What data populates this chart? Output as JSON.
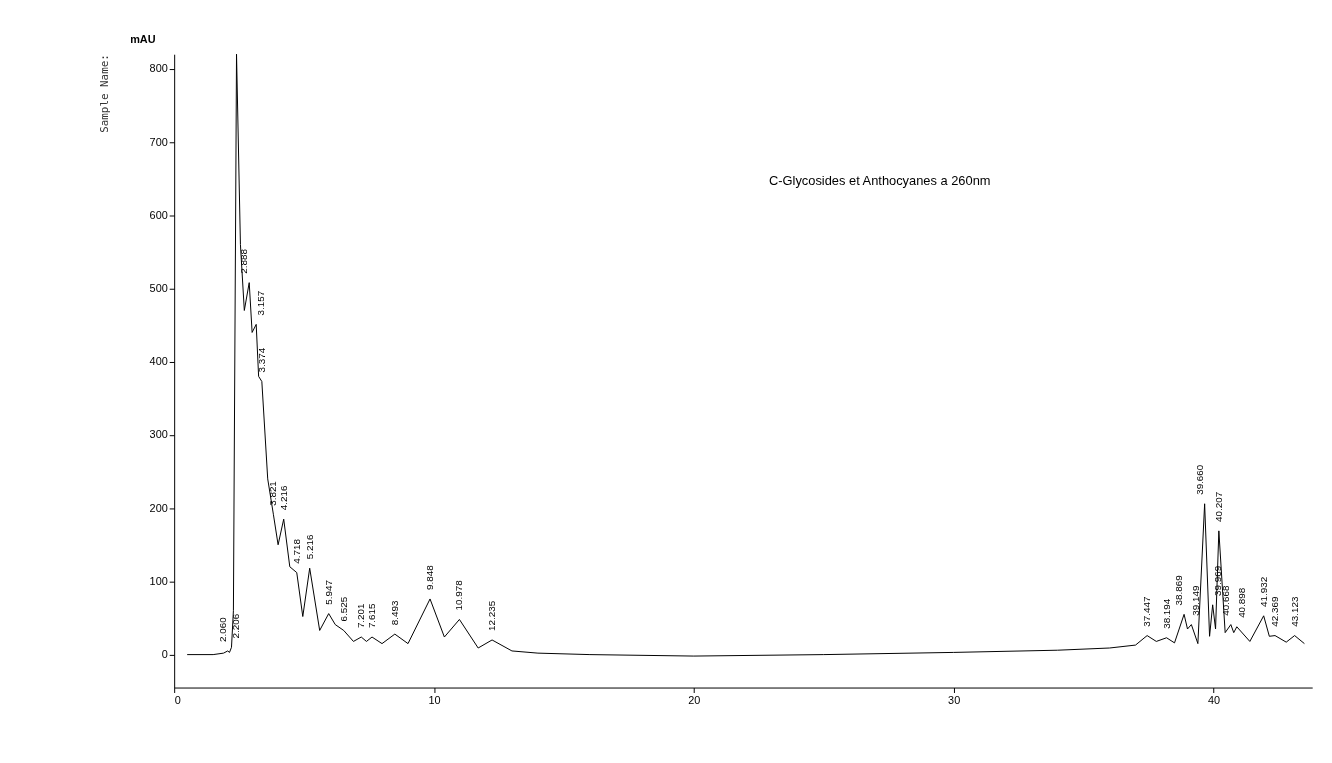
{
  "chart_data": {
    "type": "line",
    "title": "C-Glycosides et Anthocyanes a 260nm",
    "ylabel": "mAU",
    "x": [
      0.5,
      1.5,
      1.9,
      2.06,
      2.13,
      2.206,
      2.28,
      2.4,
      2.55,
      2.7,
      2.888,
      3.0,
      3.157,
      3.25,
      3.374,
      3.6,
      3.821,
      4.0,
      4.216,
      4.45,
      4.718,
      4.95,
      5.216,
      5.6,
      5.947,
      6.2,
      6.525,
      6.9,
      7.201,
      7.4,
      7.615,
      8.0,
      8.493,
      9.0,
      9.848,
      10.4,
      10.978,
      11.7,
      12.235,
      13.0,
      14.0,
      16.0,
      20.0,
      25.0,
      30.0,
      34.0,
      36.0,
      37.0,
      37.447,
      37.8,
      38.194,
      38.5,
      38.869,
      39.0,
      39.149,
      39.4,
      39.66,
      39.85,
      39.969,
      40.08,
      40.207,
      40.45,
      40.668,
      40.78,
      40.898,
      41.4,
      41.932,
      42.15,
      42.369,
      42.8,
      43.123,
      43.5
    ],
    "series": [
      {
        "color": "#000000",
        "values": [
          0,
          0,
          2,
          5,
          3,
          10,
          60,
          820,
          560,
          470,
          508,
          440,
          451,
          380,
          373,
          240,
          191,
          150,
          185,
          120,
          112,
          52,
          118,
          33,
          56,
          41,
          33,
          18,
          24,
          18,
          24,
          15,
          28,
          15,
          76,
          24,
          48,
          9,
          20,
          5,
          2,
          0,
          -2,
          0,
          3,
          6,
          9,
          13,
          26,
          18,
          23,
          16,
          55,
          35,
          41,
          15,
          206,
          25,
          68,
          35,
          169,
          30,
          41,
          30,
          38,
          18,
          53,
          25,
          26,
          17,
          26,
          15
        ]
      }
    ],
    "xlim": [
      0,
      43.8
    ],
    "ylim": [
      -45,
      820
    ],
    "xticks": [
      0,
      10,
      20,
      30,
      40
    ],
    "yticks": [
      0,
      100,
      200,
      300,
      400,
      500,
      600,
      700,
      800
    ],
    "grid": false,
    "marker": "none",
    "line_style": "solid",
    "annotations": [
      "Sample Name:",
      {
        "text": "2.060",
        "x": 2.06,
        "y": 5
      },
      {
        "text": "2.206",
        "x": 2.206,
        "y": 10
      },
      {
        "text": "2.888",
        "x": 2.888,
        "y": 508
      },
      {
        "text": "3.157",
        "x": 3.157,
        "y": 451
      },
      {
        "text": "3.374",
        "x": 3.374,
        "y": 373
      },
      {
        "text": "3.821",
        "x": 3.821,
        "y": 191
      },
      {
        "text": "4.216",
        "x": 4.216,
        "y": 185
      },
      {
        "text": "4.718",
        "x": 4.718,
        "y": 112
      },
      {
        "text": "5.216",
        "x": 5.216,
        "y": 118
      },
      {
        "text": "5.947",
        "x": 5.947,
        "y": 56
      },
      {
        "text": "6.525",
        "x": 6.525,
        "y": 33
      },
      {
        "text": "7.201",
        "x": 7.201,
        "y": 24
      },
      {
        "text": "7.615",
        "x": 7.615,
        "y": 24
      },
      {
        "text": "8.493",
        "x": 8.493,
        "y": 28
      },
      {
        "text": "9.848",
        "x": 9.848,
        "y": 76
      },
      {
        "text": "10.978",
        "x": 10.978,
        "y": 48
      },
      {
        "text": "12.235",
        "x": 12.235,
        "y": 20
      },
      {
        "text": "37.447",
        "x": 37.447,
        "y": 26
      },
      {
        "text": "38.194",
        "x": 38.194,
        "y": 23
      },
      {
        "text": "38.869",
        "x": 38.869,
        "y": 55
      },
      {
        "text": "39.149",
        "x": 39.149,
        "y": 41
      },
      {
        "text": "39.660",
        "x": 39.66,
        "y": 206
      },
      {
        "text": "39.969",
        "x": 39.969,
        "y": 68
      },
      {
        "text": "40.207",
        "x": 40.207,
        "y": 169
      },
      {
        "text": "40.668",
        "x": 40.668,
        "y": 41
      },
      {
        "text": "40.898",
        "x": 40.898,
        "y": 38
      },
      {
        "text": "41.932",
        "x": 41.932,
        "y": 53
      },
      {
        "text": "42.369",
        "x": 42.369,
        "y": 26
      },
      {
        "text": "43.123",
        "x": 43.123,
        "y": 26
      }
    ]
  }
}
